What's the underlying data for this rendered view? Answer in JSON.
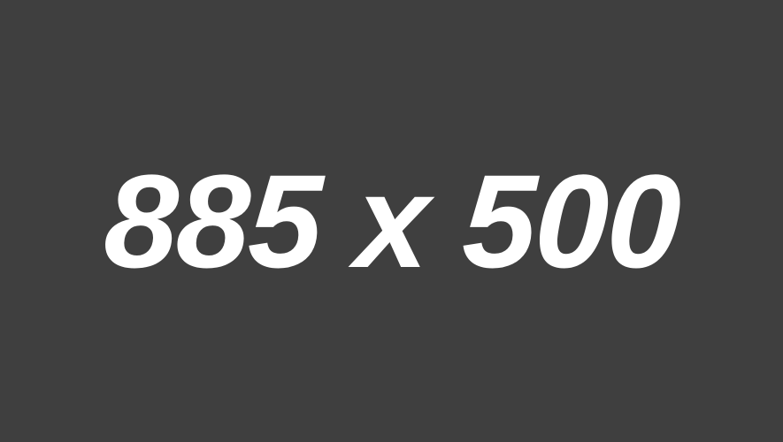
{
  "placeholder": {
    "text": "885 x 500",
    "background_color": "#3f3f3f",
    "text_color": "#ffffff"
  }
}
